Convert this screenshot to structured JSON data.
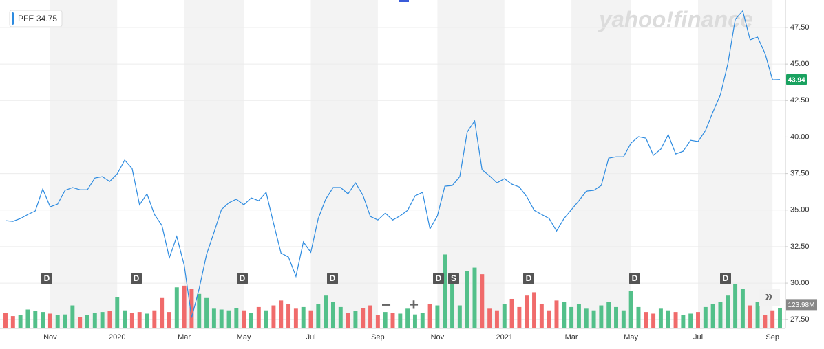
{
  "chart_data": {
    "type": "line",
    "watermark": "yahoo!finance",
    "legend_value": 34.75,
    "events": [
      "D",
      "D",
      "D",
      "D",
      "D",
      "S",
      "D",
      "D",
      "D"
    ],
    "controls": {
      "zoom_out": "−",
      "zoom_in": "+",
      "more": "»"
    },
    "categories": [
      null,
      null,
      null,
      null,
      null,
      null,
      "Nov",
      null,
      null,
      null,
      null,
      null,
      null,
      null,
      null,
      "2020",
      null,
      null,
      null,
      null,
      null,
      null,
      null,
      null,
      "Mar",
      null,
      null,
      null,
      null,
      null,
      null,
      null,
      "May",
      null,
      null,
      null,
      null,
      null,
      null,
      null,
      null,
      "Jul",
      null,
      null,
      null,
      null,
      null,
      null,
      null,
      null,
      "Sep",
      null,
      null,
      null,
      null,
      null,
      null,
      null,
      "Nov",
      null,
      null,
      null,
      null,
      null,
      null,
      null,
      null,
      "2021",
      null,
      null,
      null,
      null,
      null,
      null,
      null,
      null,
      "Mar",
      null,
      null,
      null,
      null,
      null,
      null,
      null,
      "May",
      null,
      null,
      null,
      null,
      null,
      null,
      null,
      null,
      "Jul",
      null,
      null,
      null,
      null,
      null,
      null,
      null,
      null,
      null,
      "Sep",
      null
    ],
    "series": [
      {
        "name": "PFE",
        "color": "#2d8be0",
        "values": [
          34.28,
          34.23,
          34.42,
          34.7,
          34.94,
          36.44,
          35.22,
          35.41,
          36.35,
          36.54,
          36.39,
          36.39,
          37.19,
          37.29,
          36.96,
          37.48,
          38.42,
          37.85,
          35.36,
          36.11,
          34.7,
          33.95,
          31.74,
          33.19,
          31.22,
          27.64,
          29.62,
          31.97,
          33.48,
          35.03,
          35.5,
          35.74,
          35.36,
          35.83,
          35.64,
          36.21,
          34.09,
          32.06,
          31.78,
          30.46,
          32.82,
          32.11,
          34.42,
          35.74,
          36.54,
          36.54,
          36.11,
          36.86,
          36.02,
          34.56,
          34.32,
          34.79,
          34.32,
          34.61,
          34.98,
          35.97,
          36.21,
          33.71,
          34.61,
          36.63,
          36.68,
          37.29,
          40.35,
          41.1,
          37.76,
          37.34,
          36.86,
          37.15,
          36.77,
          36.58,
          35.92,
          34.98,
          34.7,
          34.42,
          33.57,
          34.42,
          35.03,
          35.64,
          36.3,
          36.35,
          36.68,
          38.56,
          38.65,
          38.65,
          39.59,
          40.02,
          39.92,
          38.75,
          39.17,
          40.16,
          38.84,
          39.03,
          39.78,
          39.69,
          40.44,
          41.71,
          42.89,
          45.01,
          48.06,
          48.63,
          46.65,
          46.84,
          45.71,
          43.92,
          43.94
        ]
      },
      {
        "axis": "y2",
        "up_color": "#53c08a",
        "down_color": "#f06b6b",
        "values": [
          95,
          75,
          80,
          115,
          105,
          100,
          90,
          80,
          85,
          140,
          70,
          80,
          95,
          100,
          105,
          190,
          110,
          95,
          100,
          90,
          110,
          185,
          100,
          250,
          260,
          240,
          210,
          185,
          120,
          115,
          110,
          125,
          110,
          95,
          130,
          110,
          140,
          170,
          150,
          120,
          130,
          110,
          150,
          200,
          160,
          130,
          95,
          105,
          125,
          140,
          80,
          100,
          95,
          90,
          120,
          85,
          95,
          150,
          140,
          450,
          300,
          140,
          350,
          370,
          330,
          120,
          110,
          150,
          180,
          130,
          200,
          220,
          150,
          110,
          170,
          160,
          130,
          150,
          120,
          110,
          140,
          160,
          130,
          110,
          230,
          130,
          100,
          90,
          120,
          110,
          100,
          80,
          90,
          100,
          130,
          150,
          160,
          200,
          270,
          240,
          140,
          160,
          80,
          110,
          123.98
        ],
        "value_labels": [
          null,
          null,
          null,
          null,
          null,
          null,
          null,
          null,
          null,
          null,
          null,
          null,
          null,
          null,
          null,
          null,
          null,
          null,
          null,
          null,
          null,
          null,
          null,
          null,
          null,
          null,
          null,
          null,
          null,
          null,
          null,
          null,
          null,
          null,
          null,
          null,
          null,
          null,
          null,
          null,
          null,
          null,
          null,
          null,
          null,
          null,
          null,
          null,
          null,
          null,
          null,
          null,
          null,
          null,
          null,
          null,
          null,
          null,
          null,
          null,
          null,
          null,
          null,
          null,
          null,
          null,
          null,
          null,
          null,
          null,
          null,
          null,
          null,
          null,
          null,
          null,
          null,
          null,
          null,
          null,
          null,
          null,
          null,
          null,
          null,
          null,
          null,
          null,
          null,
          null,
          null,
          null,
          null,
          null,
          null,
          null,
          null,
          null,
          null,
          null,
          null,
          null,
          null,
          null,
          "123.98M"
        ]
      }
    ],
    "ylim": [
      26.9,
      49.38
    ],
    "yticks": [
      {
        "value": 27.5,
        "label": "27.50"
      },
      {
        "value": 30,
        "label": "30.00"
      },
      {
        "value": 32.5,
        "label": "32.50"
      },
      {
        "value": 35,
        "label": "35.00"
      },
      {
        "value": 37.5,
        "label": "37.50"
      },
      {
        "value": 40,
        "label": "40.00"
      },
      {
        "value": 42.5,
        "label": "42.50"
      },
      {
        "value": 45,
        "label": "45.00"
      },
      {
        "value": 47.5,
        "label": "47.50"
      }
    ],
    "y2lim": [
      0,
      2000
    ],
    "grid": true
  }
}
